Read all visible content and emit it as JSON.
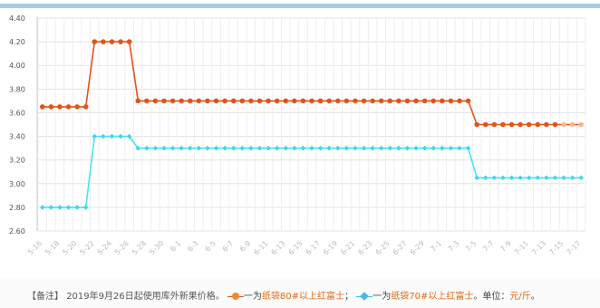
{
  "chart_data": {
    "type": "line",
    "title": "",
    "xlabel": "",
    "ylabel": "",
    "ylim": [
      2.6,
      4.4
    ],
    "yticks": [
      "4.40",
      "4.20",
      "4.00",
      "3.80",
      "3.60",
      "3.40",
      "3.20",
      "3.00",
      "2.80",
      "2.60"
    ],
    "grid": true,
    "x": [
      "5-16",
      "5-17",
      "5-18",
      "5-19",
      "5-20",
      "5-21",
      "5-22",
      "5-23",
      "5-24",
      "5-25",
      "5-26",
      "5-27",
      "5-28",
      "5-29",
      "5-30",
      "5-31",
      "6-1",
      "6-2",
      "6-3",
      "6-4",
      "6-5",
      "6-6",
      "6-7",
      "6-8",
      "6-9",
      "6-10",
      "6-11",
      "6-12",
      "6-13",
      "6-14",
      "6-15",
      "6-16",
      "6-17",
      "6-18",
      "6-19",
      "6-20",
      "6-21",
      "6-22",
      "6-23",
      "6-24",
      "6-25",
      "6-26",
      "6-27",
      "6-28",
      "6-29",
      "6-30",
      "7-1",
      "7-2",
      "7-3",
      "7-4",
      "7-5",
      "7-6",
      "7-7",
      "7-8",
      "7-9",
      "7-10",
      "7-11",
      "7-12",
      "7-13",
      "7-14",
      "7-15",
      "7-16",
      "7-17"
    ],
    "x_tick_labels": [
      "5-16",
      "5-18",
      "5-20",
      "5-22",
      "5-24",
      "5-26",
      "5-28",
      "5-30",
      "6-1",
      "6-3",
      "6-5",
      "6-7",
      "6-9",
      "6-11",
      "6-13",
      "6-15",
      "6-17",
      "6-19",
      "6-21",
      "6-23",
      "6-25",
      "6-27",
      "6-29",
      "7-1",
      "7-3",
      "7-5",
      "7-7",
      "7-9",
      "7-11",
      "7-13",
      "7-15",
      "7-17"
    ],
    "series": [
      {
        "color": "#e2541b",
        "marker_color": "#e2541b",
        "marker": "circle",
        "values": [
          3.65,
          3.65,
          3.65,
          3.65,
          3.65,
          3.65,
          4.2,
          4.2,
          4.2,
          4.2,
          4.2,
          3.7,
          3.7,
          3.7,
          3.7,
          3.7,
          3.7,
          3.7,
          3.7,
          3.7,
          3.7,
          3.7,
          3.7,
          3.7,
          3.7,
          3.7,
          3.7,
          3.7,
          3.7,
          3.7,
          3.7,
          3.7,
          3.7,
          3.7,
          3.7,
          3.7,
          3.7,
          3.7,
          3.7,
          3.7,
          3.7,
          3.7,
          3.7,
          3.7,
          3.7,
          3.7,
          3.7,
          3.7,
          3.7,
          3.7,
          3.5,
          3.5,
          3.5,
          3.5,
          3.5,
          3.5,
          3.5,
          3.5,
          3.5,
          3.5,
          3.5,
          3.5,
          3.5
        ],
        "faded_from_index": 60
      },
      {
        "color": "#47e3f0",
        "marker_color": "#3fd7ea",
        "marker": "diamond",
        "values": [
          2.8,
          2.8,
          2.8,
          2.8,
          2.8,
          2.8,
          3.4,
          3.4,
          3.4,
          3.4,
          3.4,
          3.3,
          3.3,
          3.3,
          3.3,
          3.3,
          3.3,
          3.3,
          3.3,
          3.3,
          3.3,
          3.3,
          3.3,
          3.3,
          3.3,
          3.3,
          3.3,
          3.3,
          3.3,
          3.3,
          3.3,
          3.3,
          3.3,
          3.3,
          3.3,
          3.3,
          3.3,
          3.3,
          3.3,
          3.3,
          3.3,
          3.3,
          3.3,
          3.3,
          3.3,
          3.3,
          3.3,
          3.3,
          3.3,
          3.3,
          3.05,
          3.05,
          3.05,
          3.05,
          3.05,
          3.05,
          3.05,
          3.05,
          3.05,
          3.05,
          3.05,
          3.05,
          3.05
        ]
      }
    ]
  },
  "note": {
    "label": "【备注】",
    "intro": "2019年9月26日起使用库外新果价格。",
    "dash": "一",
    "orange_series_prefix": "一为",
    "orange_series_name": "纸袋80#以上红富士",
    "separator": "；",
    "cyan_series_prefix": "一为",
    "cyan_series_name": "纸袋70#以上红富士",
    "unit_prefix": "。单位：",
    "unit": "元/斤",
    "end": "。"
  }
}
